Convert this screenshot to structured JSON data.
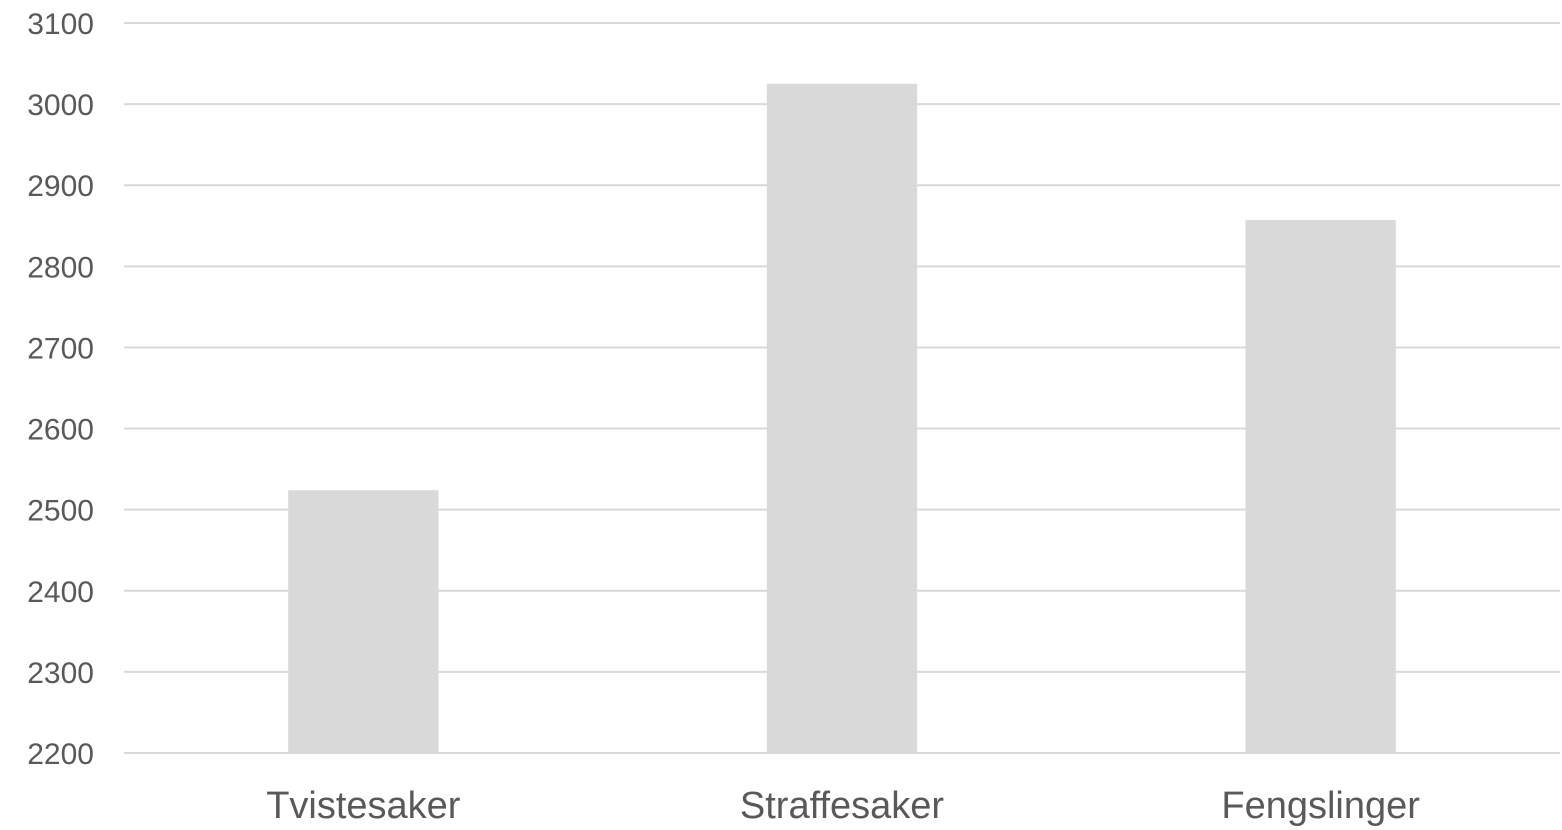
{
  "chart_data": {
    "type": "bar",
    "categories": [
      "Tvistesaker",
      "Straffesaker",
      "Fengslinger"
    ],
    "values": [
      2524,
      3025,
      2857
    ],
    "ylim": [
      2200,
      3100
    ],
    "yticks": [
      2200,
      2300,
      2400,
      2500,
      2600,
      2700,
      2800,
      2900,
      3000,
      3100
    ],
    "grid": true,
    "legend": "none",
    "colors": {
      "bar": "#d9d9d9",
      "grid": "#d9d9d9",
      "text": "#595959"
    }
  }
}
